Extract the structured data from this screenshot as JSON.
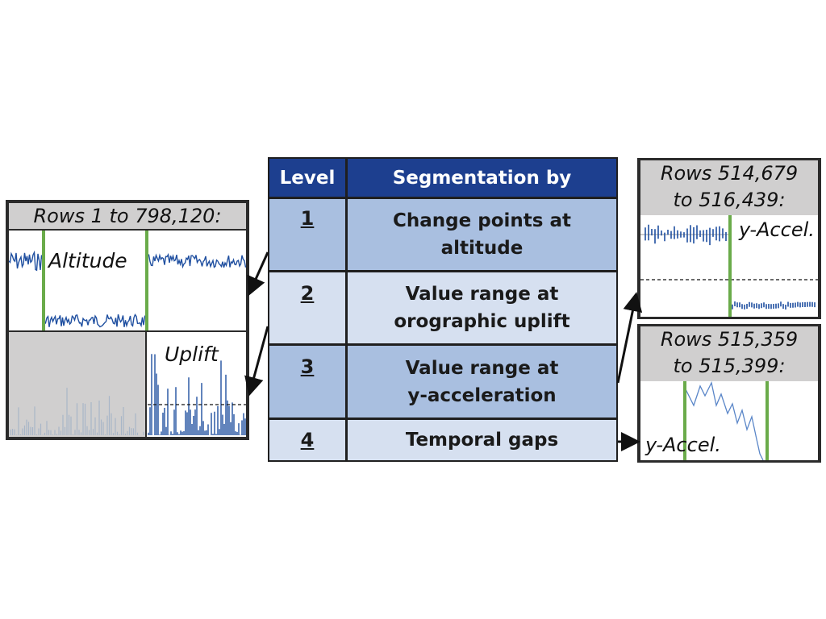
{
  "left": {
    "title": "Rows 1 to 798,120:",
    "altitude_label": "Altitude",
    "uplift_label": "Uplift"
  },
  "table": {
    "header_level": "Level",
    "header_segmentation": "Segmentation by",
    "rows": [
      {
        "level": "1",
        "line1": "Change points at",
        "line2": "altitude"
      },
      {
        "level": "2",
        "line1": "Value range at",
        "line2": "orographic uplift"
      },
      {
        "level": "3",
        "line1": "Value range at",
        "line2": "y-acceleration"
      },
      {
        "level": "4",
        "line1": "Temporal gaps",
        "line2": ""
      }
    ]
  },
  "right_top": {
    "title_line1": "Rows 514,679",
    "title_line2": "to 516,439:",
    "label": "y-Accel."
  },
  "right_bottom": {
    "title_line1": "Rows 515,359",
    "title_line2": "to 515,399:",
    "label": "y-Accel."
  },
  "colors": {
    "header_blue": "#1d3f8f",
    "row_dark": "#a9bfe0",
    "row_light": "#d6e0f0",
    "signal_blue": "#1f4fa0",
    "boundary_green": "#6aab4a",
    "panel_gray": "#d0cfcf"
  }
}
